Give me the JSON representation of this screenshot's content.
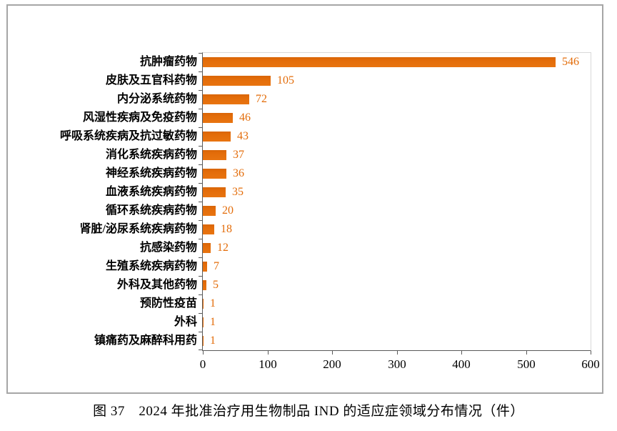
{
  "figure": {
    "caption": "图 37　2024 年批准治疗用生物制品 IND 的适应症领域分布情况（件）"
  },
  "chart_data": {
    "type": "bar",
    "orientation": "horizontal",
    "title": "",
    "xlabel": "",
    "ylabel": "",
    "categories": [
      "抗肿瘤药物",
      "皮肤及五官科药物",
      "内分泌系统药物",
      "风湿性疾病及免疫药物",
      "呼吸系统疾病及抗过敏药物",
      "消化系统疾病药物",
      "神经系统疾病药物",
      "血液系统疾病药物",
      "循环系统疾病药物",
      "肾脏/泌尿系统疾病药物",
      "抗感染药物",
      "生殖系统疾病药物",
      "外科及其他药物",
      "预防性疫苗",
      "外科",
      "镇痛药及麻醉科用药"
    ],
    "values": [
      546,
      105,
      72,
      46,
      43,
      37,
      36,
      35,
      20,
      18,
      12,
      7,
      5,
      1,
      1,
      1
    ],
    "xlim": [
      0,
      600
    ],
    "x_ticks": [
      0,
      100,
      200,
      300,
      400,
      500,
      600
    ],
    "grid": false,
    "legend": false,
    "data_labels": true,
    "colors": {
      "bar": "#e36c09",
      "value_label": "#e36c09",
      "axis_line": "#595959",
      "plot_border": "#d9d9d9",
      "figure_border": "#a6a6a6",
      "text": "#000000"
    }
  }
}
